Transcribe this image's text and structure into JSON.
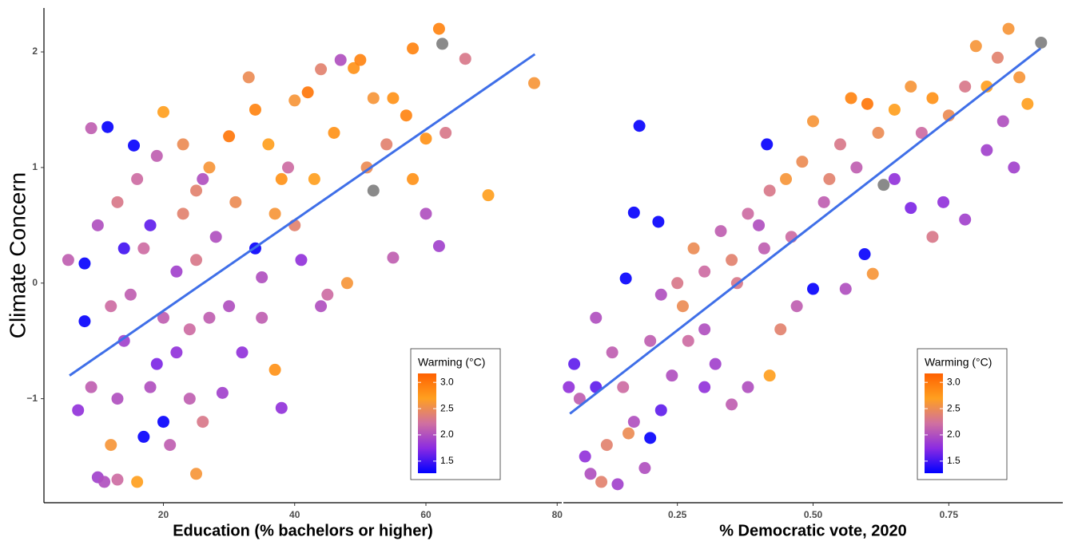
{
  "chart_data": [
    {
      "type": "scatter",
      "xlabel": "Education (% bachelors or higher)",
      "ylabel": "Climate Concern",
      "xlim": [
        1.8,
        80.7
      ],
      "ylim": [
        -1.9,
        2.38
      ],
      "xticks": [
        20,
        40,
        60,
        80
      ],
      "yticks": [
        {
          "value": -1,
          "label": "−1"
        },
        0,
        1,
        2
      ],
      "x": [
        11.5,
        15.5,
        9,
        5.5,
        8,
        8,
        10,
        11,
        13,
        16,
        17,
        20,
        25,
        24,
        22,
        18,
        14,
        12,
        10,
        13,
        16,
        19,
        20,
        23,
        25,
        27,
        30,
        33,
        34,
        36,
        38,
        40,
        42,
        44,
        47,
        49,
        50,
        52,
        55,
        57,
        58,
        60,
        62,
        62.5,
        66,
        76.5,
        69.5,
        62,
        55,
        48,
        45,
        38,
        37,
        35,
        32,
        29,
        27,
        25,
        22,
        20,
        17,
        15,
        28,
        31,
        34,
        35,
        40,
        43,
        46,
        51,
        52,
        54,
        58,
        60,
        63,
        44,
        41,
        30,
        24,
        19,
        13,
        9,
        7,
        12,
        21,
        26,
        14,
        18,
        23,
        26,
        37,
        39
      ],
      "y": [
        1.35,
        1.19,
        1.34,
        0.2,
        0.17,
        -0.33,
        -1.68,
        -1.72,
        -1.7,
        -1.72,
        -1.33,
        -1.2,
        -1.65,
        -1.0,
        -0.6,
        -0.9,
        -0.5,
        -0.2,
        0.5,
        0.7,
        0.9,
        1.1,
        1.48,
        1.2,
        0.8,
        1.0,
        1.27,
        1.78,
        1.5,
        1.2,
        0.9,
        1.58,
        1.65,
        1.85,
        1.93,
        1.86,
        1.93,
        1.6,
        1.6,
        1.45,
        2.03,
        1.25,
        2.2,
        2.07,
        1.94,
        1.73,
        0.76,
        0.32,
        0.22,
        0.0,
        -0.1,
        -1.08,
        -0.75,
        -0.3,
        -0.6,
        -0.95,
        -0.3,
        0.2,
        0.1,
        -0.3,
        0.3,
        -0.1,
        0.4,
        0.7,
        0.3,
        0.05,
        0.5,
        0.9,
        1.3,
        1.0,
        0.8,
        1.2,
        0.9,
        0.6,
        1.3,
        -0.2,
        0.2,
        -0.2,
        -0.4,
        -0.7,
        -1.0,
        -0.9,
        -1.1,
        -1.4,
        -1.4,
        -1.2,
        0.3,
        0.5,
        0.6,
        0.9,
        0.6,
        1.0
      ],
      "z": [
        1.3,
        1.3,
        2.1,
        2.1,
        1.3,
        1.3,
        1.9,
        2.0,
        2.2,
        2.7,
        1.3,
        1.3,
        2.6,
        2.1,
        1.8,
        2.0,
        1.9,
        2.2,
        2.0,
        2.3,
        2.2,
        2.1,
        2.7,
        2.5,
        2.4,
        2.6,
        3.0,
        2.5,
        2.9,
        2.7,
        2.8,
        2.6,
        3.0,
        2.4,
        2.0,
        2.8,
        2.9,
        2.6,
        2.8,
        2.9,
        2.9,
        2.8,
        2.9,
        null,
        2.3,
        2.6,
        2.7,
        1.9,
        2.1,
        2.6,
        2.2,
        1.8,
        2.8,
        2.1,
        1.8,
        1.9,
        2.1,
        2.3,
        1.9,
        2.1,
        2.2,
        2.1,
        2.0,
        2.5,
        1.3,
        2.0,
        2.4,
        2.7,
        2.8,
        2.5,
        null,
        2.4,
        2.8,
        2.0,
        2.3,
        2.0,
        1.8,
        2.0,
        2.2,
        1.7,
        2.0,
        2.1,
        1.8,
        2.6,
        2.1,
        2.3,
        1.5,
        1.6,
        2.4,
        2.0,
        2.6,
        2.2
      ],
      "trend": {
        "x": [
          5.7,
          76.6
        ],
        "y": [
          -0.8,
          1.98
        ],
        "color": "#3f6fe8"
      },
      "colorbar": {
        "title": "Warming (°C)",
        "lim": [
          1.27,
          3.17
        ],
        "colors": [
          "#0000ff",
          "#8b2be2",
          "#d070a0",
          "#ffa020",
          "#ff6000"
        ],
        "na_color": "#808080",
        "ticks": [
          {
            "value": 1.5,
            "label": "1.5"
          },
          {
            "value": 2.0,
            "label": "2.0"
          },
          {
            "value": 2.5,
            "label": "2.5"
          },
          {
            "value": 3.0,
            "label": "3.0"
          }
        ]
      }
    },
    {
      "type": "scatter",
      "xlabel": "% Democratic vote, 2020",
      "xlim": [
        0.04,
        0.96
      ],
      "ylim": [
        -1.9,
        2.38
      ],
      "xticks": [
        0.25,
        {
          "value": 0.5,
          "label": "0.50"
        },
        0.75
      ],
      "x": [
        0.18,
        0.415,
        0.17,
        0.215,
        0.155,
        0.595,
        0.2,
        0.05,
        0.06,
        0.08,
        0.09,
        0.11,
        0.14,
        0.12,
        0.1,
        0.13,
        0.15,
        0.17,
        0.2,
        0.22,
        0.25,
        0.28,
        0.3,
        0.33,
        0.35,
        0.38,
        0.4,
        0.42,
        0.45,
        0.48,
        0.5,
        0.52,
        0.55,
        0.57,
        0.6,
        0.62,
        0.65,
        0.68,
        0.7,
        0.72,
        0.75,
        0.78,
        0.8,
        0.82,
        0.84,
        0.86,
        0.88,
        0.895,
        0.92,
        0.87,
        0.85,
        0.82,
        0.78,
        0.74,
        0.72,
        0.68,
        0.65,
        0.63,
        0.61,
        0.56,
        0.5,
        0.47,
        0.44,
        0.42,
        0.38,
        0.35,
        0.32,
        0.3,
        0.27,
        0.24,
        0.22,
        0.19,
        0.16,
        0.07,
        0.1,
        0.46,
        0.53,
        0.36,
        0.41,
        0.58,
        0.3,
        0.26
      ],
      "y": [
        1.36,
        1.2,
        0.61,
        0.53,
        0.04,
        0.25,
        -1.34,
        -0.9,
        -0.7,
        -1.5,
        -1.65,
        -1.72,
        -1.74,
        -1.4,
        -0.3,
        -0.6,
        -0.9,
        -1.2,
        -0.5,
        -0.1,
        0.0,
        0.3,
        0.1,
        0.45,
        0.2,
        0.6,
        0.5,
        0.8,
        0.9,
        1.05,
        1.4,
        0.7,
        1.2,
        1.6,
        1.55,
        1.3,
        1.5,
        1.7,
        1.3,
        1.6,
        1.45,
        1.7,
        2.05,
        1.7,
        1.95,
        2.2,
        1.78,
        1.55,
        2.08,
        1.0,
        1.4,
        1.15,
        0.55,
        0.7,
        0.4,
        0.65,
        0.9,
        0.85,
        0.08,
        -0.05,
        -0.05,
        -0.2,
        -0.4,
        -0.8,
        -0.9,
        -1.05,
        -0.7,
        -0.4,
        -0.5,
        -0.8,
        -1.1,
        -1.6,
        -1.3,
        -1.0,
        -0.9,
        0.4,
        0.9,
        0.0,
        0.3,
        1.0,
        -0.9,
        -0.2
      ],
      "z": [
        1.3,
        1.3,
        1.3,
        1.3,
        1.3,
        1.3,
        1.3,
        1.8,
        1.6,
        1.8,
        2.0,
        2.4,
        1.9,
        2.4,
        2.0,
        2.1,
        2.2,
        2.0,
        2.1,
        2.0,
        2.3,
        2.5,
        2.2,
        2.1,
        2.4,
        2.2,
        2.0,
        2.3,
        2.6,
        2.5,
        2.6,
        2.1,
        2.3,
        2.9,
        3.0,
        2.5,
        2.7,
        2.6,
        2.2,
        2.8,
        2.5,
        2.3,
        2.6,
        2.7,
        2.4,
        2.6,
        2.6,
        2.7,
        null,
        1.9,
        2.0,
        1.9,
        1.9,
        1.8,
        2.3,
        1.7,
        1.8,
        null,
        2.6,
        2.0,
        1.3,
        2.1,
        2.4,
        2.7,
        2.0,
        2.1,
        1.9,
        2.0,
        2.2,
        2.0,
        1.6,
        2.0,
        2.5,
        2.1,
        1.6,
        2.2,
        2.4,
        2.3,
        2.1,
        2.1,
        1.8,
        2.5
      ],
      "trend": {
        "x": [
          0.052,
          0.919
        ],
        "y": [
          -1.13,
          2.03
        ],
        "color": "#3f6fe8"
      },
      "colorbar": {
        "title": "Warming (°C)",
        "lim": [
          1.27,
          3.17
        ],
        "colors": [
          "#0000ff",
          "#8b2be2",
          "#d070a0",
          "#ffa020",
          "#ff6000"
        ],
        "na_color": "#808080",
        "ticks": [
          {
            "value": 1.5,
            "label": "1.5"
          },
          {
            "value": 2.0,
            "label": "2.0"
          },
          {
            "value": 2.5,
            "label": "2.5"
          },
          {
            "value": 3.0,
            "label": "3.0"
          }
        ]
      }
    }
  ]
}
